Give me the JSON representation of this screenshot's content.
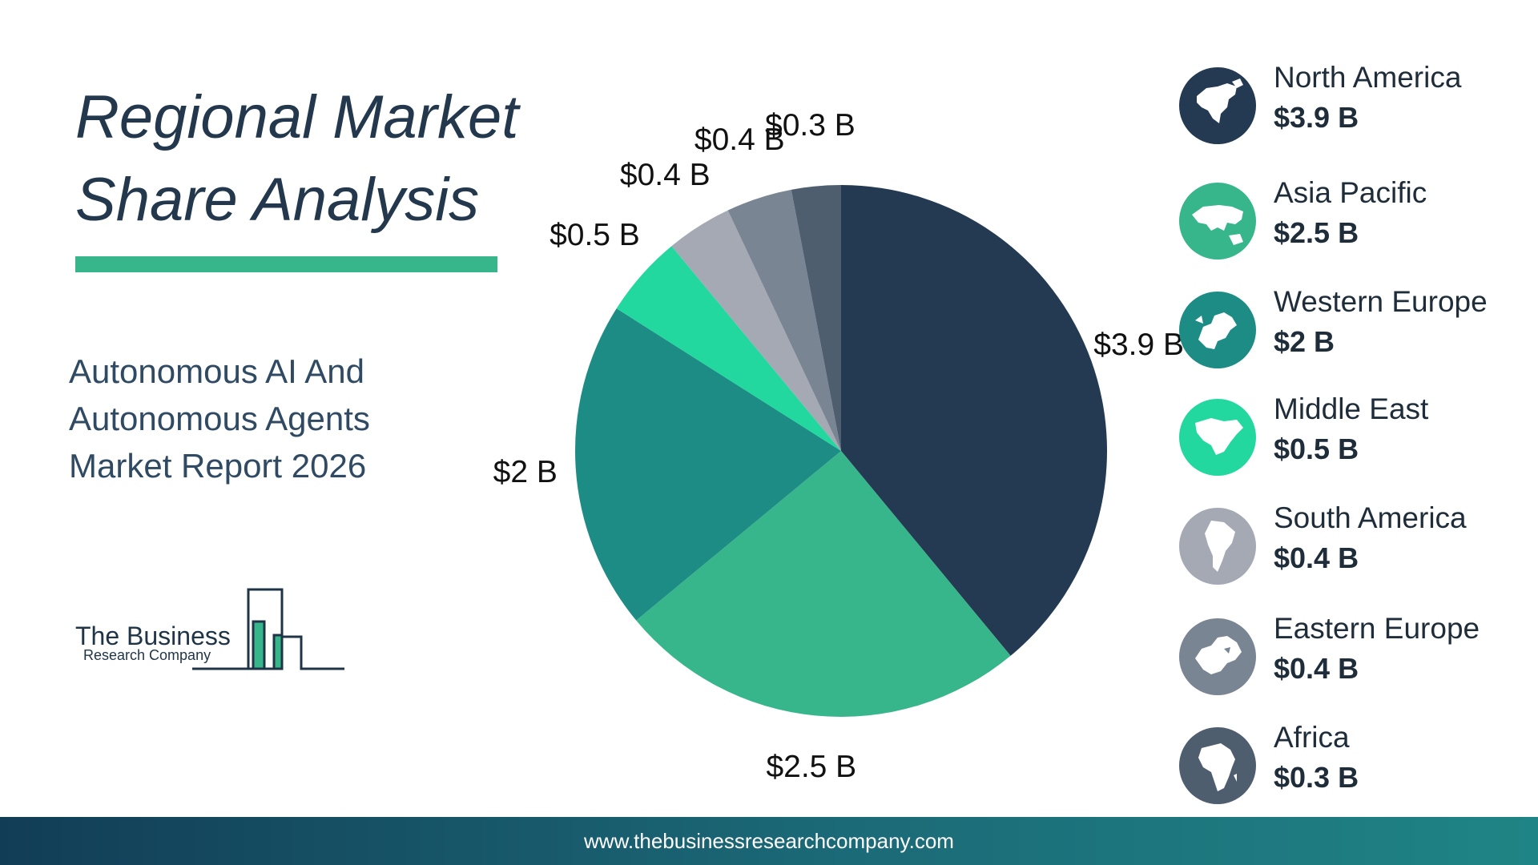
{
  "title_line1": "Regional Market",
  "title_line2": "Share Analysis",
  "subtitle_line1": "Autonomous AI And",
  "subtitle_line2": "Autonomous Agents",
  "subtitle_line3": "Market Report 2026",
  "logo": {
    "line1": "The Business",
    "line2": "Research Company"
  },
  "footer": {
    "url": "www.thebusinessresearchcompany.com"
  },
  "chart_data": {
    "type": "pie",
    "unit": "$B",
    "categories": [
      "North America",
      "Asia Pacific",
      "Western Europe",
      "Middle East",
      "South America",
      "Eastern Europe",
      "Africa"
    ],
    "values": [
      3.9,
      2.5,
      2.0,
      0.5,
      0.4,
      0.4,
      0.3
    ],
    "labels": [
      "$3.9 B",
      "$2.5 B",
      "$2 B",
      "$0.5 B",
      "$0.4 B",
      "$0.4 B",
      "$0.3 B"
    ],
    "colors": [
      "#243a52",
      "#36b68a",
      "#1c8c85",
      "#22d89f",
      "#a5a9b4",
      "#7a8593",
      "#4e5e6f"
    ],
    "legend_position": "right"
  },
  "legend": [
    {
      "name": "North America",
      "value": "$3.9 B",
      "color": "#243a52",
      "icon": "north-america-icon"
    },
    {
      "name": "Asia Pacific",
      "value": "$2.5 B",
      "color": "#36b68a",
      "icon": "asia-pacific-icon"
    },
    {
      "name": "Western Europe",
      "value": "$2 B",
      "color": "#1c8c85",
      "icon": "western-europe-icon"
    },
    {
      "name": "Middle East",
      "value": "$0.5 B",
      "color": "#22d89f",
      "icon": "middle-east-icon"
    },
    {
      "name": "South America",
      "value": "$0.4 B",
      "color": "#a5a9b4",
      "icon": "south-america-icon"
    },
    {
      "name": "Eastern Europe",
      "value": "$0.4 B",
      "color": "#7a8593",
      "icon": "eastern-europe-icon"
    },
    {
      "name": "Africa",
      "value": "$0.3 B",
      "color": "#4e5e6f",
      "icon": "africa-icon"
    }
  ]
}
